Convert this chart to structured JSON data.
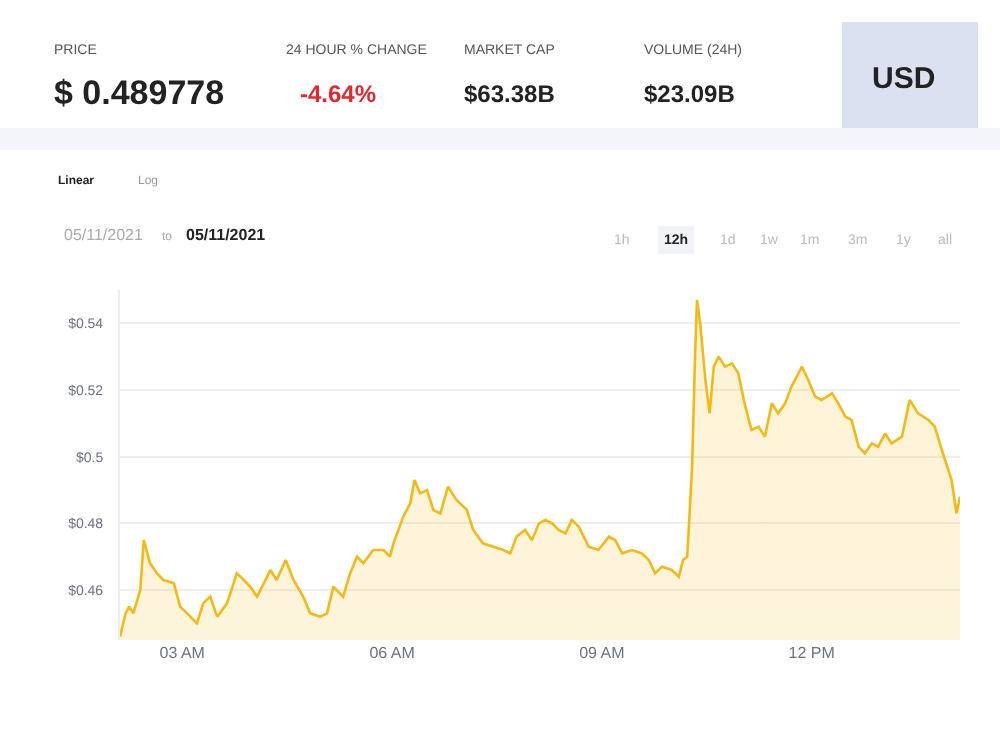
{
  "chart_data": {
    "type": "area",
    "x": [
      2.11,
      2.19,
      2.24,
      2.3,
      2.4,
      2.45,
      2.54,
      2.64,
      2.73,
      2.88,
      2.97,
      3.07,
      3.21,
      3.3,
      3.4,
      3.5,
      3.64,
      3.78,
      3.88,
      3.97,
      4.07,
      4.26,
      4.35,
      4.48,
      4.59,
      4.73,
      4.83,
      4.97,
      5.07,
      5.16,
      5.3,
      5.4,
      5.5,
      5.59,
      5.73,
      5.88,
      5.97,
      6.02,
      6.16,
      6.26,
      6.32,
      6.4,
      6.5,
      6.59,
      6.69,
      6.8,
      6.92,
      7.07,
      7.16,
      7.3,
      7.45,
      7.59,
      7.69,
      7.78,
      7.9,
      8.0,
      8.1,
      8.19,
      8.29,
      8.38,
      8.48,
      8.57,
      8.67,
      8.81,
      8.95,
      9.1,
      9.19,
      9.29,
      9.43,
      9.57,
      9.67,
      9.76,
      9.86,
      10.0,
      10.1,
      10.16,
      10.22,
      10.29,
      10.33,
      10.36,
      10.41,
      10.48,
      10.54,
      10.6,
      10.67,
      10.76,
      10.86,
      10.95,
      11.05,
      11.14,
      11.24,
      11.33,
      11.43,
      11.52,
      11.62,
      11.71,
      11.86,
      11.95,
      12.05,
      12.14,
      12.29,
      12.38,
      12.48,
      12.57,
      12.67,
      12.76,
      12.86,
      12.95,
      13.05,
      13.14,
      13.29,
      13.4,
      13.52,
      13.67,
      13.76,
      13.86,
      14.0,
      14.07,
      14.12
    ],
    "series": [
      {
        "color": "#f5b914",
        "values": [
          0.446,
          0.453,
          0.455,
          0.453,
          0.46,
          0.475,
          0.468,
          0.465,
          0.463,
          0.462,
          0.455,
          0.453,
          0.45,
          0.456,
          0.458,
          0.452,
          0.456,
          0.465,
          0.463,
          0.461,
          0.458,
          0.466,
          0.463,
          0.469,
          0.463,
          0.458,
          0.453,
          0.452,
          0.453,
          0.461,
          0.458,
          0.465,
          0.47,
          0.468,
          0.472,
          0.472,
          0.47,
          0.474,
          0.482,
          0.486,
          0.493,
          0.489,
          0.49,
          0.484,
          0.483,
          0.491,
          0.487,
          0.484,
          0.478,
          0.474,
          0.473,
          0.472,
          0.471,
          0.476,
          0.478,
          0.475,
          0.48,
          0.481,
          0.48,
          0.478,
          0.477,
          0.481,
          0.479,
          0.473,
          0.472,
          0.476,
          0.475,
          0.471,
          0.472,
          0.471,
          0.469,
          0.465,
          0.467,
          0.466,
          0.464,
          0.469,
          0.47,
          0.497,
          0.529,
          0.547,
          0.539,
          0.523,
          0.513,
          0.527,
          0.53,
          0.527,
          0.528,
          0.525,
          0.515,
          0.508,
          0.509,
          0.506,
          0.516,
          0.513,
          0.516,
          0.521,
          0.527,
          0.523,
          0.518,
          0.517,
          0.519,
          0.516,
          0.512,
          0.511,
          0.503,
          0.501,
          0.504,
          0.503,
          0.507,
          0.504,
          0.506,
          0.517,
          0.513,
          0.511,
          0.509,
          0.502,
          0.493,
          0.483,
          0.488
        ]
      }
    ],
    "xlim": [
      2.11,
      14.12
    ],
    "xticks": [
      {
        "value": 3,
        "label": "03 AM"
      },
      {
        "value": 6,
        "label": "06 AM"
      },
      {
        "value": 9,
        "label": "09 AM"
      },
      {
        "value": 12,
        "label": "12 PM"
      }
    ],
    "yticks": [
      {
        "value": 0.46,
        "label": "$0.46"
      },
      {
        "value": 0.48,
        "label": "$0.48"
      },
      {
        "value": 0.5,
        "label": "$0.5"
      },
      {
        "value": 0.52,
        "label": "$0.52"
      },
      {
        "value": 0.54,
        "label": "$0.54"
      }
    ],
    "ylim": [
      0.445,
      0.55
    ],
    "grid": "y",
    "annotations": [
      "PRICE",
      "$ 0.489778",
      "24 HOUR % CHANGE",
      "-4.64%",
      "MARKET CAP",
      "$63.38B",
      "VOLUME (24H)",
      "$23.09B",
      "USD",
      "Linear",
      "Log",
      "05/11/2021",
      "to",
      "05/11/2021",
      "1h",
      "12h",
      "1d",
      "1w",
      "1m",
      "3m",
      "1y",
      "all"
    ]
  }
}
